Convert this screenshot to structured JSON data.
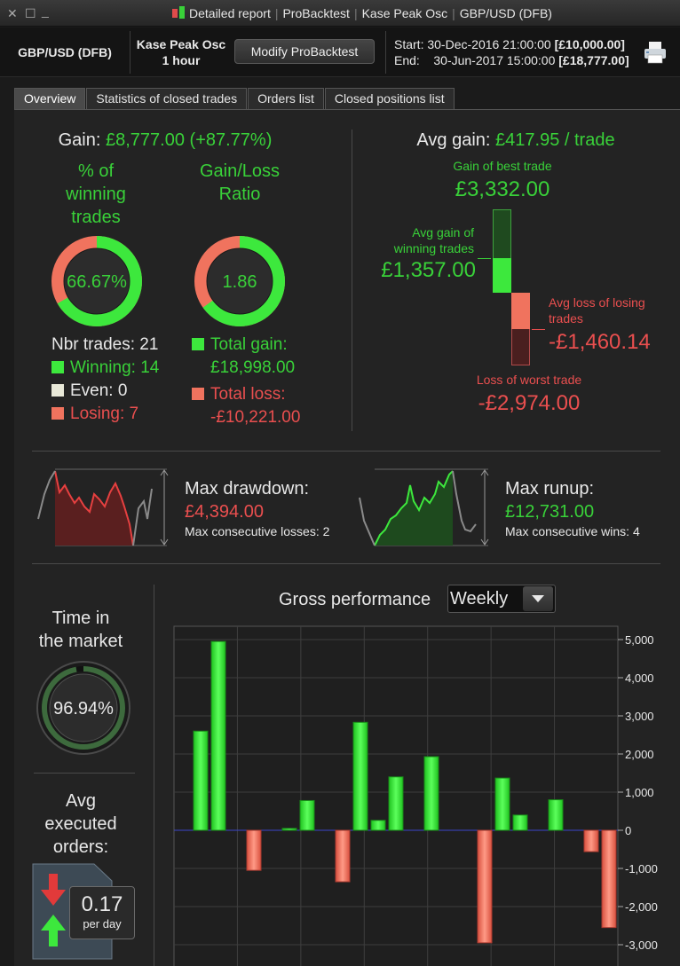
{
  "title_bar": {
    "parts": [
      "Detailed report",
      "ProBacktest",
      "Kase Peak Osc",
      "GBP/USD (DFB)"
    ]
  },
  "header": {
    "instrument": "GBP/USD (DFB)",
    "system_name": "Kase Peak Osc",
    "timeframe": "1 hour",
    "modify_button": "Modify ProBacktest",
    "start_label": "Start:",
    "start_date": "30-Dec-2016 21:00:00",
    "start_capital": "[£10,000.00]",
    "end_label": "End:",
    "end_date": "30-Jun-2017 15:00:00",
    "end_capital": "[£18,777.00]"
  },
  "tabs": [
    {
      "label": "Overview",
      "active": true
    },
    {
      "label": "Statistics of closed trades",
      "active": false
    },
    {
      "label": "Orders list",
      "active": false
    },
    {
      "label": "Closed positions list",
      "active": false
    }
  ],
  "gain": {
    "label": "Gain:",
    "value": "£8,777.00 (+87.77%)"
  },
  "winning_pct": {
    "label_lines": [
      "% of",
      "winning",
      "trades"
    ],
    "value": "66.67%",
    "fraction": 0.6667
  },
  "gl_ratio": {
    "label_lines": [
      "Gain/Loss",
      "Ratio"
    ],
    "value": "1.86",
    "fraction": 0.65
  },
  "trades": {
    "nbr_label": "Nbr trades: 21",
    "winning": "Winning: 14",
    "even": "Even: 0",
    "losing": "Losing: 7",
    "total_gain_label": "Total gain:",
    "total_gain_value": "£18,998.00",
    "total_loss_label": "Total loss:",
    "total_loss_value": "-£10,221.00"
  },
  "avg_gain": {
    "label": "Avg gain:",
    "value": "£417.95 / trade",
    "best_label": "Gain of best trade",
    "best_value": "£3,332.00",
    "avg_win_label_lines": [
      "Avg gain of",
      "winning trades"
    ],
    "avg_win_value": "£1,357.00",
    "avg_loss_label_lines": [
      "Avg loss of losing",
      "trades"
    ],
    "avg_loss_value": "-£1,460.14",
    "worst_label": "Loss of worst trade",
    "worst_value": "-£2,974.00"
  },
  "drawdown": {
    "title": "Max drawdown:",
    "value": "£4,394.00",
    "sub": "Max consecutive losses: 2"
  },
  "runup": {
    "title": "Max runup:",
    "value": "£12,731.00",
    "sub": "Max consecutive wins: 4"
  },
  "time_in_market": {
    "label_lines": [
      "Time in",
      "the market"
    ],
    "value": "96.94%",
    "fraction": 0.9694
  },
  "avg_orders": {
    "label_lines": [
      "Avg",
      "executed",
      "orders:"
    ],
    "value": "0.17",
    "unit": "per day"
  },
  "colors": {
    "green": "#39d139",
    "red": "#ea4f4f",
    "accent_bar_green": "#2fe82f",
    "accent_bar_red": "#f56a5a"
  },
  "chart_data": {
    "type": "bar",
    "title": "Gross performance",
    "period_select": "Weekly",
    "y_ticks": [
      "5,000",
      "4,000",
      "3,000",
      "2,000",
      "1,000",
      "0",
      "-1,000",
      "-2,000",
      "-3,000"
    ],
    "ylim": [
      -3000,
      5000
    ],
    "grid": true,
    "values": [
      0,
      2600,
      4950,
      0,
      -1050,
      0,
      50,
      780,
      0,
      -1350,
      2830,
      260,
      1400,
      0,
      1930,
      0,
      0,
      -2950,
      1370,
      400,
      0,
      800,
      0,
      -560,
      -2550
    ]
  }
}
